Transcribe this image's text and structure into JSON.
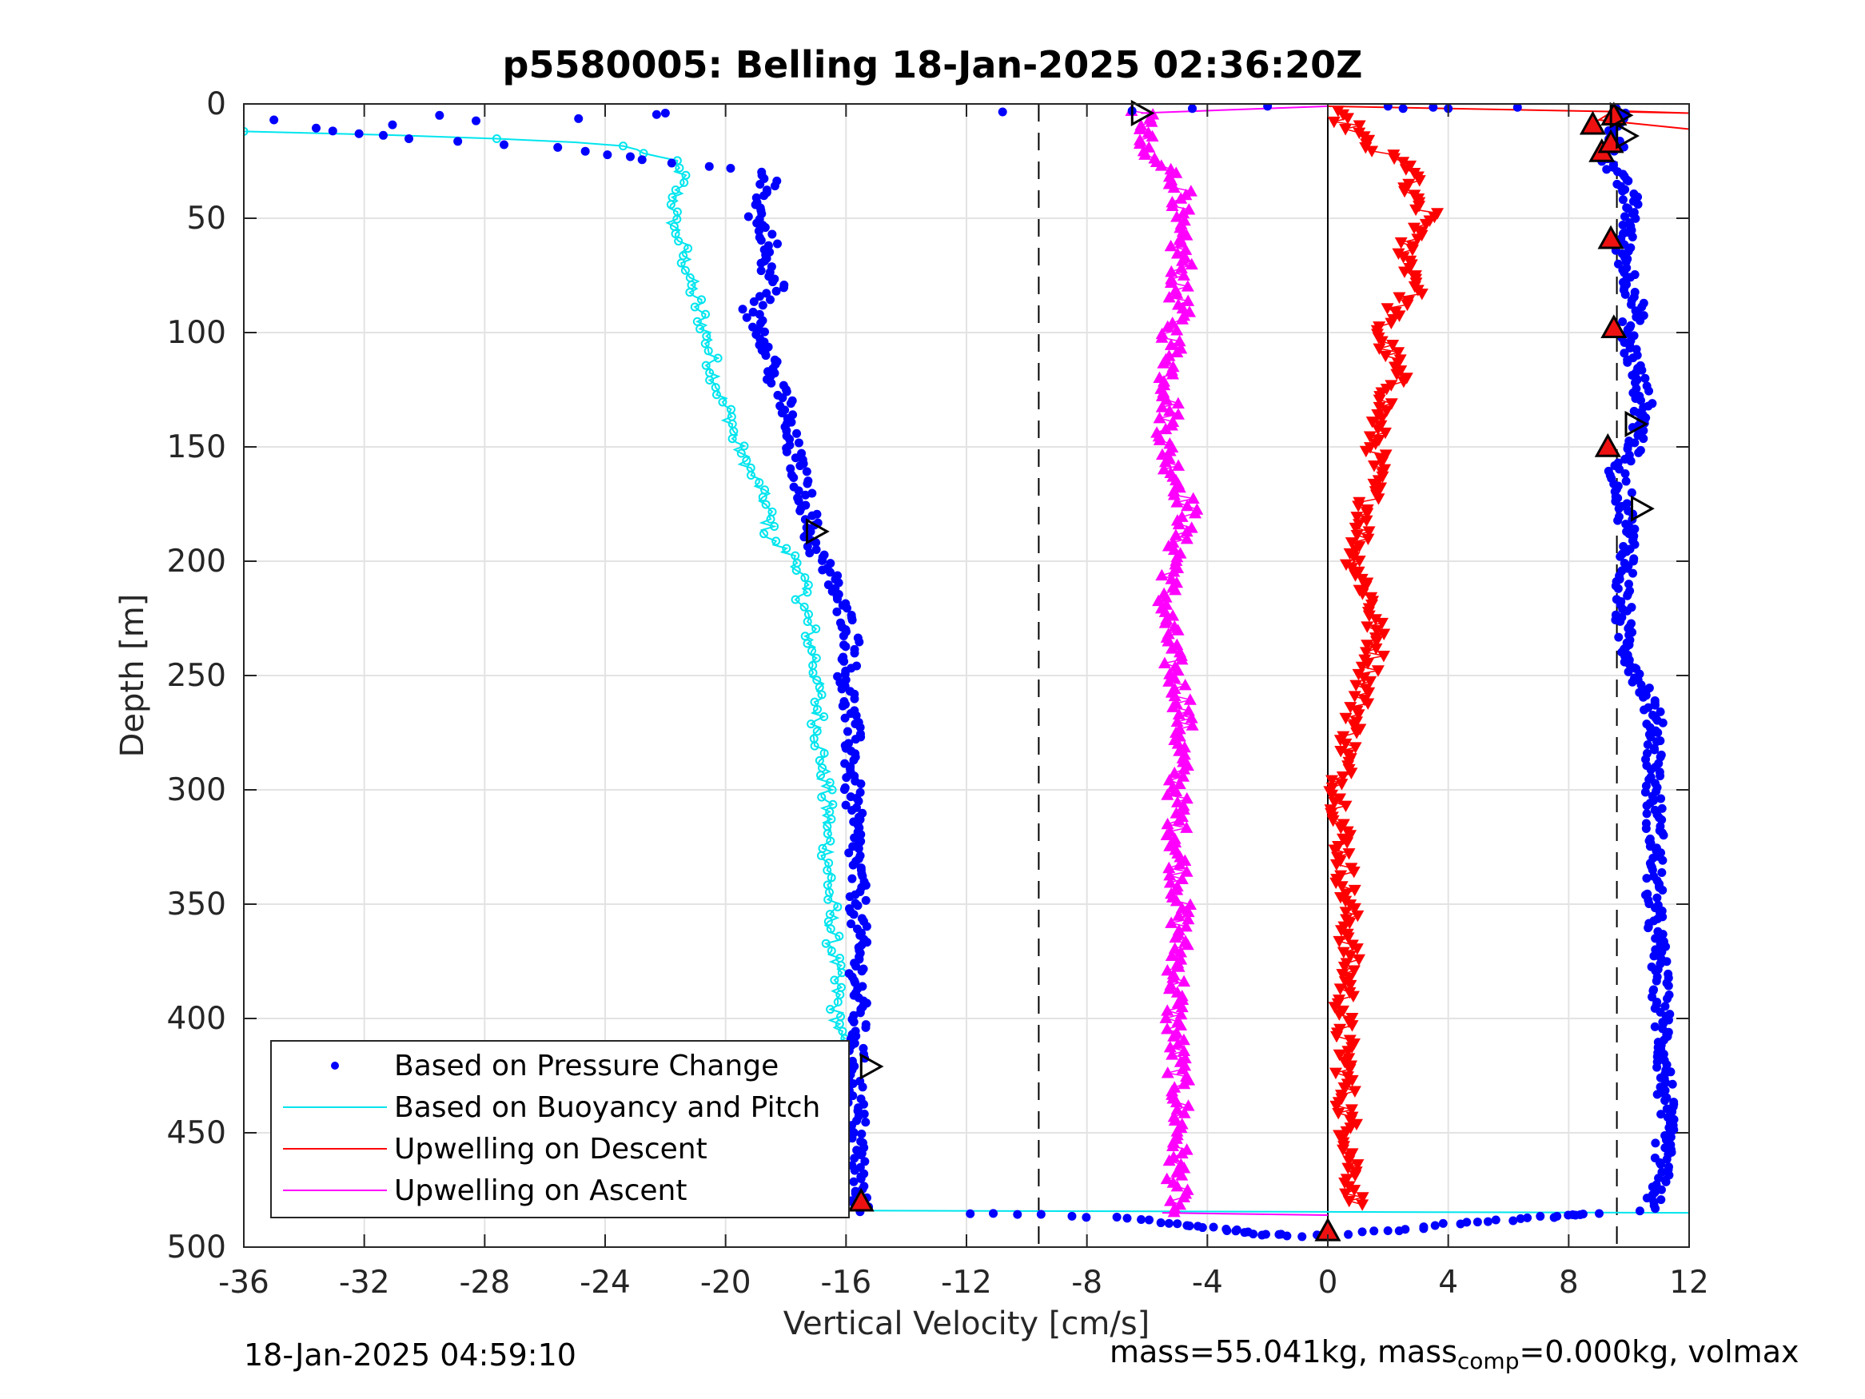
{
  "title": "p5580005: Belling 18-Jan-2025 02:36:20Z",
  "footer_left": "18-Jan-2025 04:59:10",
  "footer_right": {
    "pre": "mass=55.041kg, mass",
    "sub": "comp",
    "post": "=0.000kg, volmax"
  },
  "colors": {
    "pressure": "#0000ff",
    "buoyancy": "#00e5ee",
    "descent": "#ff0000",
    "ascent": "#ff00ff"
  },
  "chart_data": {
    "type": "scatter",
    "title": "p5580005: Belling 18-Jan-2025 02:36:20Z",
    "xlabel": "Vertical Velocity [cm/s]",
    "ylabel": "Depth [m]",
    "xlim": [
      -36,
      12
    ],
    "ylim": [
      0,
      500
    ],
    "y_reversed": true,
    "grid": true,
    "x_ticks": [
      -36,
      -32,
      -28,
      -24,
      -20,
      -16,
      -12,
      -8,
      -4,
      0,
      4,
      8,
      12
    ],
    "y_ticks": [
      0,
      50,
      100,
      150,
      200,
      250,
      300,
      350,
      400,
      450,
      500
    ],
    "x_tick_labels": [
      "-36",
      "-32",
      "-28",
      "-24",
      "-20",
      "-16",
      "-12",
      "-8",
      "-4",
      "0",
      "4",
      "8",
      "12"
    ],
    "y_tick_labels": [
      "0",
      "50",
      "100",
      "150",
      "200",
      "250",
      "300",
      "350",
      "400",
      "450",
      "500"
    ],
    "legend_position": "bottom-left",
    "reference_lines": [
      {
        "x": -9.6,
        "style": "dashed"
      },
      {
        "x": 0,
        "style": "solid"
      },
      {
        "x": 9.6,
        "style": "dashed"
      }
    ],
    "series": [
      {
        "name": "Based on Pressure Change",
        "profiles": [
          {
            "depth": [
              5,
              10,
              15,
              20,
              25,
              30,
              40,
              50,
              60,
              70,
              80,
              90,
              100,
              110,
              120,
              130,
              140,
              150,
              160,
              170,
              180,
              190,
              200,
              210,
              220,
              230,
              240,
              250,
              275,
              300,
              325,
              350,
              375,
              400,
              425,
              450,
              475,
              485
            ],
            "v": [
              -22,
              -34,
              -31,
              -25,
              -22.5,
              -18.5,
              -18.7,
              -19,
              -18.5,
              -18.8,
              -18.2,
              -19.2,
              -18.8,
              -18.4,
              -18.5,
              -18,
              -18,
              -17.8,
              -17.6,
              -17.4,
              -17.2,
              -17.2,
              -16.8,
              -16.4,
              -16.2,
              -15.8,
              -15.8,
              -16,
              -15.8,
              -15.8,
              -15.7,
              -15.6,
              -15.6,
              -15.6,
              -15.7,
              -15.6,
              -15.6,
              -15.5
            ]
          },
          {
            "depth": [
              1,
              10,
              20,
              25,
              30,
              40,
              50,
              60,
              70,
              80,
              90,
              100,
              110,
              120,
              130,
              140,
              150,
              160,
              170,
              180,
              190,
              200,
              210,
              220,
              230,
              240,
              250,
              260,
              275,
              300,
              325,
              350,
              375,
              400,
              425,
              450,
              475,
              484
            ],
            "v": [
              9.8,
              9.5,
              9.6,
              9.3,
              9.5,
              10,
              10.1,
              9.8,
              9.9,
              10.1,
              10.3,
              9.9,
              10.1,
              10.3,
              10.5,
              10.4,
              10.2,
              9.6,
              9.8,
              9.9,
              10,
              10,
              9.8,
              9.8,
              9.8,
              10,
              10.3,
              10.7,
              10.9,
              10.8,
              10.9,
              10.8,
              11,
              11.1,
              11.2,
              11.2,
              11,
              10.6
            ]
          }
        ],
        "bottom_turn": {
          "depth": [
            485,
            487,
            490,
            492,
            494,
            495,
            493,
            490,
            488,
            486,
            485
          ],
          "v": [
            -12,
            -7,
            -5,
            -3.5,
            -2.5,
            -1,
            2,
            4,
            6,
            8,
            9
          ]
        },
        "surface_outliers": {
          "depth": [
            1,
            1.5,
            2,
            2,
            1.5,
            2,
            1,
            3,
            3.5,
            4,
            5,
            7
          ],
          "v": [
            2,
            3.5,
            4,
            2.5,
            6.3,
            -4.5,
            -2,
            -6.5,
            -10.8,
            -22,
            -29.5,
            -35
          ]
        }
      },
      {
        "name": "Based on Buoyancy and Pitch",
        "depth": [
          12,
          14,
          16,
          18,
          25,
          30,
          40,
          50,
          60,
          70,
          80,
          90,
          100,
          110,
          120,
          130,
          140,
          150,
          160,
          170,
          180,
          190,
          200,
          210,
          220,
          230,
          240,
          250,
          275,
          300,
          325,
          350,
          375,
          400,
          425,
          450,
          475,
          484
        ],
        "v": [
          -36,
          -30,
          -26,
          -23.5,
          -21.8,
          -21.5,
          -21.6,
          -21.8,
          -21.5,
          -21.3,
          -21.1,
          -20.9,
          -20.6,
          -20.5,
          -20.3,
          -20.1,
          -19.8,
          -19.6,
          -19.2,
          -18.8,
          -18.6,
          -18.6,
          -17.6,
          -17.5,
          -17.4,
          -17.2,
          -17.1,
          -17,
          -16.9,
          -16.7,
          -16.6,
          -16.5,
          -16.4,
          -16.3,
          -16.2,
          -16.2,
          -16.2,
          -16.1
        ],
        "bottom_line": {
          "depth": [
            484,
            485
          ],
          "v": [
            -16,
            12
          ]
        }
      },
      {
        "name": "Upwelling on Descent",
        "depth": [
          3,
          10,
          18,
          25,
          30,
          35,
          40,
          50,
          60,
          70,
          80,
          90,
          100,
          110,
          120,
          140,
          160,
          180,
          200,
          220,
          240,
          260,
          280,
          300,
          320,
          340,
          360,
          380,
          400,
          420,
          440,
          460,
          480
        ],
        "v": [
          0,
          0.8,
          1.2,
          2.3,
          3,
          2.6,
          2.6,
          3.5,
          2.6,
          2.7,
          3.1,
          2.2,
          1.7,
          2.1,
          2.3,
          1.6,
          1.6,
          1.3,
          0.9,
          1.5,
          1.6,
          1.1,
          0.7,
          0.4,
          0.5,
          0.6,
          0.7,
          0.7,
          0.5,
          0.6,
          0.6,
          0.8,
          0.9
        ],
        "surface_spike": {
          "depth": [
            1,
            4,
            3,
            7,
            11
          ],
          "v": [
            0,
            12,
            9.5,
            9,
            12
          ]
        },
        "triangle_direction": "down"
      },
      {
        "name": "Upwelling on Ascent",
        "depth": [
          3,
          10,
          20,
          30,
          40,
          50,
          60,
          70,
          80,
          90,
          100,
          110,
          120,
          130,
          140,
          150,
          160,
          170,
          180,
          190,
          200,
          210,
          220,
          230,
          240,
          250,
          260,
          270,
          280,
          300,
          320,
          340,
          360,
          380,
          400,
          420,
          440,
          460,
          480,
          485
        ],
        "v": [
          -6.2,
          -6,
          -6.3,
          -5.2,
          -4.7,
          -5.1,
          -5,
          -4.8,
          -5,
          -4.9,
          -5.2,
          -5.1,
          -5.3,
          -5.2,
          -5.3,
          -5.4,
          -5.1,
          -4.8,
          -4.6,
          -5,
          -5,
          -5.3,
          -5.4,
          -5.3,
          -5.2,
          -5.1,
          -4.8,
          -4.8,
          -4.9,
          -5,
          -5,
          -4.9,
          -4.9,
          -5,
          -5.1,
          -5,
          -4.9,
          -5,
          -5,
          -5.1
        ],
        "surface_line": {
          "depth": [
            4,
            1
          ],
          "v": [
            -6.2,
            0
          ]
        },
        "bottom_line": {
          "depth": [
            485,
            486
          ],
          "v": [
            -5.5,
            0
          ]
        },
        "triangle_direction": "up"
      }
    ],
    "markers": {
      "red_triangles": [
        {
          "v": 8.8,
          "depth": 9
        },
        {
          "v": 9.1,
          "depth": 21
        },
        {
          "v": 9.5,
          "depth": 5
        },
        {
          "v": 9.4,
          "depth": 17
        },
        {
          "v": 9.4,
          "depth": 59
        },
        {
          "v": 9.5,
          "depth": 98
        },
        {
          "v": 9.3,
          "depth": 150
        },
        {
          "v": -15.5,
          "depth": 480
        },
        {
          "v": 0,
          "depth": 493
        }
      ],
      "black_right_triangles": [
        {
          "v": -6.2,
          "depth": 4
        },
        {
          "v": -17,
          "depth": 187
        },
        {
          "v": -15.2,
          "depth": 421
        },
        {
          "v": 9.7,
          "depth": 5
        },
        {
          "v": 9.9,
          "depth": 14
        },
        {
          "v": 10.2,
          "depth": 140
        },
        {
          "v": 10.4,
          "depth": 177
        }
      ]
    }
  }
}
